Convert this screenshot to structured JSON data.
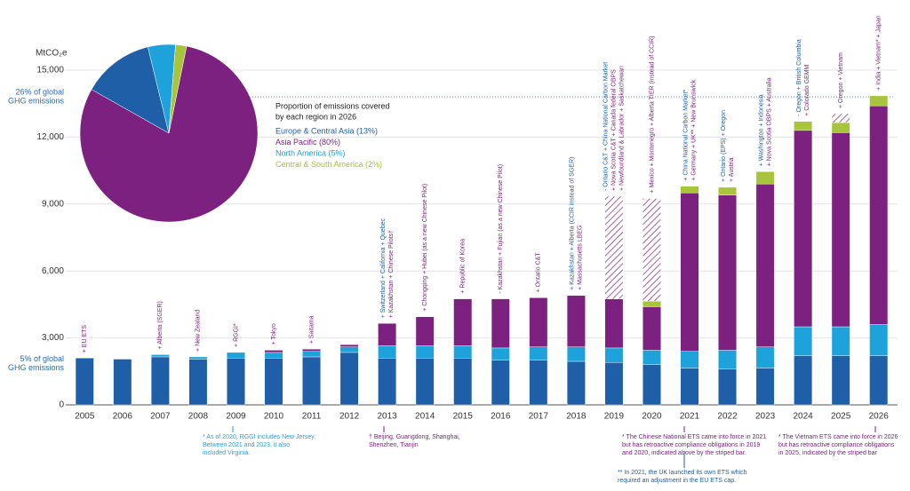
{
  "chart_data": [
    {
      "type": "bar",
      "y_label": "MtCO₂e",
      "categories": [
        "2005",
        "2006",
        "2007",
        "2008",
        "2009",
        "2010",
        "2011",
        "2012",
        "2013",
        "2014",
        "2015",
        "2016",
        "2017",
        "2018",
        "2019",
        "2020",
        "2021",
        "2022",
        "2023",
        "2024",
        "2025",
        "2026"
      ],
      "series": [
        {
          "color": "#1f5fa8",
          "values": [
            2100,
            2050,
            2150,
            2050,
            2100,
            2100,
            2150,
            2350,
            2100,
            2100,
            2100,
            2000,
            2000,
            1950,
            1900,
            1800,
            1650,
            1600,
            1650,
            2200,
            2200,
            2200
          ]
        },
        {
          "color": "#1ea2dc",
          "values": [
            0,
            0,
            100,
            100,
            250,
            250,
            250,
            250,
            550,
            550,
            550,
            550,
            600,
            650,
            650,
            650,
            750,
            850,
            950,
            1300,
            1300,
            1400
          ]
        },
        {
          "color": "#7d2180",
          "values": [
            0,
            0,
            0,
            0,
            0,
            100,
            100,
            100,
            1000,
            1300,
            2100,
            2200,
            2200,
            2300,
            2200,
            1950,
            7100,
            6950,
            7300,
            8800,
            8700,
            9800
          ]
        },
        {
          "color": "#a8c43c",
          "values": [
            0,
            0,
            0,
            0,
            0,
            0,
            0,
            0,
            0,
            0,
            0,
            0,
            0,
            0,
            0,
            250,
            300,
            350,
            550,
            400,
            450,
            450
          ]
        },
        {
          "color": "#7d2180",
          "pattern": "striped",
          "values": [
            0,
            0,
            0,
            0,
            0,
            0,
            0,
            0,
            0,
            0,
            0,
            0,
            0,
            0,
            4600,
            4600,
            0,
            0,
            0,
            0,
            400,
            0
          ]
        }
      ],
      "ylim": [
        0,
        15000
      ],
      "yticks": [
        0,
        {
          "value": 3000,
          "label": "3,000"
        },
        {
          "value": 6000,
          "label": "6,000"
        },
        {
          "value": 9000,
          "label": "9,000"
        },
        {
          "value": 12000,
          "label": "12,000"
        },
        {
          "value": 15000,
          "label": "15,000"
        }
      ],
      "grid": true,
      "reference_lines": [
        {
          "value": 13800,
          "label": [
            "26% of global",
            "GHG emissions"
          ]
        },
        {
          "value": 1850,
          "label": [
            "5% of global",
            "GHG emissions"
          ]
        }
      ],
      "annotations": [
        [
          "+ EU ETS"
        ],
        [],
        [
          "+ Alberta (SGER)"
        ],
        [
          "+ New Zealand"
        ],
        [
          "+ RGGI*"
        ],
        [
          "+ Tokyo"
        ],
        [
          "+ Saitama"
        ],
        [],
        [
          "+ Switzerland + California + Quebec",
          "+ Kazakhstan + Chinese Pilots†"
        ],
        [
          "+ Chongqing + Hubei (as a new Chinese Pilot)"
        ],
        [
          "+ Republic of Korea"
        ],
        [
          "- Kazakhstan + Fujian (as a new Chinese Pilot)"
        ],
        [
          "+ Ontario C&T"
        ],
        [
          "+ Kazakhstan + Alberta (CCIR instead of SGER)",
          "+ Massachusetts LBEG"
        ],
        [
          "- Ontario C&T + China National Carbon Market",
          "+ Nova Scotia C&T + Canada federal OBPS",
          "+ Newfoundland & Labrador + Saskatchewan"
        ],
        [
          "+ Mexico + Montenegro + Alberta TIER (instead of CCIR)"
        ],
        [
          "+ China National Carbon Market*",
          "+ Germany + UK** + New Brunswick"
        ],
        [
          "+ Ontario (EPS) + Oregon",
          "+ Austria"
        ],
        [
          "+ Washington + Indonesia",
          "+ Nova Scotia OBPS + Australia"
        ],
        [
          "- Oregon + British Columbia",
          "+ Colorado GEMM"
        ],
        [
          "+ Oregon + Vietnam"
        ],
        [
          "+ India + Vietnam* + Japan"
        ]
      ],
      "notes": [
        [
          "* As of 2020, RGGI includes New Jersey.",
          "Between 2021 and 2023, it also",
          "included Virginia."
        ],
        [
          "† Beijing, Guangdong, Shanghai,",
          "Shenzhen, Tianjin"
        ],
        [
          "* The Chinese National ETS came into force in 2021",
          "but has retroactive compliance obligations in 2019",
          "and 2020, indicated above by the striped bar."
        ],
        [
          "** In 2021, the UK launched its own ETS which",
          "required an adjustment in the EU ETS cap."
        ],
        [
          "* The Vietnam ETS came into force in 2026",
          "but has retroactive compliance obligations",
          "in 2025, indicated by the striped bar"
        ]
      ]
    },
    {
      "type": "pie",
      "title": [
        "Proportion of emissions covered",
        "by each region in 2026"
      ],
      "categories": [
        "Europe & Central Asia (13%)",
        "Asia Pacific (80%)",
        "North America (5%)",
        "Central & South America (2%)"
      ],
      "values": [
        13,
        80,
        5,
        2
      ],
      "colors": [
        "#1f5fa8",
        "#7d2180",
        "#1ea2dc",
        "#a8c43c"
      ]
    }
  ]
}
